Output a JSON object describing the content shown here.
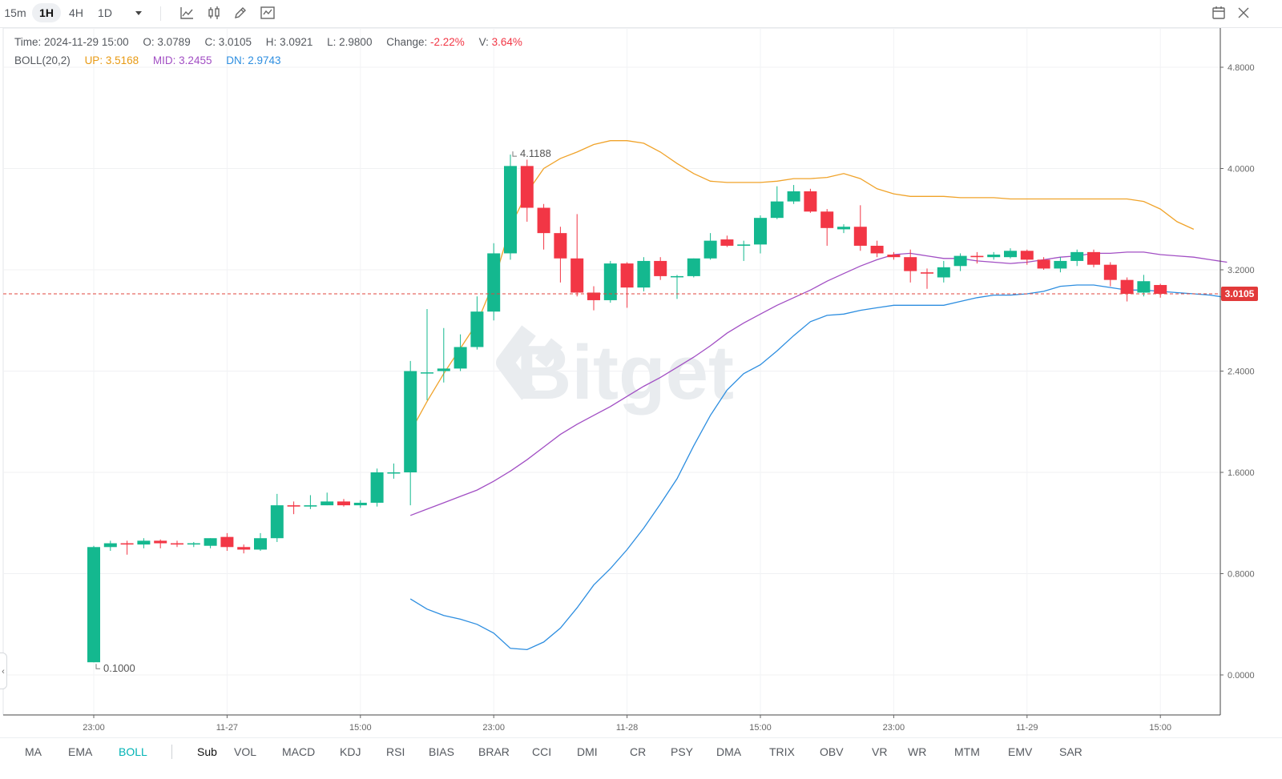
{
  "toolbar": {
    "timeframes": [
      "15m",
      "1H",
      "4H",
      "1D"
    ],
    "active_timeframe": "1H",
    "dropdown_icon": "triangle-down-icon",
    "tools": [
      "line-chart-icon",
      "candlestick-icon",
      "pencil-icon",
      "indicator-icon"
    ],
    "right_tools": [
      "calendar-icon",
      "fullscreen-exit-icon"
    ]
  },
  "legend": {
    "time_label": "Time:",
    "time_value": "2024-11-29 15:00",
    "open_label": "O:",
    "open_value": "3.0789",
    "close_label": "C:",
    "close_value": "3.0105",
    "high_label": "H:",
    "high_value": "3.0921",
    "low_label": "L:",
    "low_value": "2.9800",
    "change_label": "Change:",
    "change_value": "-2.22%",
    "vol_label": "V:",
    "vol_value": "3.64%",
    "boll_label": "BOLL(20,2)",
    "up_label": "UP:",
    "up_value": "3.5168",
    "mid_label": "MID:",
    "mid_value": "3.2455",
    "dn_label": "DN:",
    "dn_value": "2.9743"
  },
  "watermark": "Bitget",
  "current_price_tag": "3.0105",
  "colors": {
    "up": "#14b88f",
    "down": "#f23645",
    "boll_up": "#f0a32a",
    "boll_mid": "#a24fc4",
    "boll_dn": "#2d8ee0",
    "active": "#00b3b5",
    "price_line": "#e0453c"
  },
  "chart_data": {
    "type": "candlestick",
    "y_axis": {
      "min": 0,
      "max": 4.8,
      "ticks": [
        "4.8000",
        "4.0000",
        "3.2000",
        "2.4000",
        "1.6000",
        "0.8000",
        "0.0000"
      ]
    },
    "x_axis": {
      "ticks": [
        "23:00",
        "11-27",
        "15:00",
        "23:00",
        "11-28",
        "15:00",
        "23:00",
        "11-29",
        "15:00"
      ]
    },
    "annotations": {
      "max_label": "4.1188",
      "min_label": "0.1000"
    },
    "candles": [
      {
        "o": 0.1,
        "h": 1.02,
        "l": 0.1,
        "c": 1.01
      },
      {
        "o": 1.01,
        "h": 1.06,
        "l": 0.98,
        "c": 1.04
      },
      {
        "o": 1.04,
        "h": 1.06,
        "l": 0.95,
        "c": 1.03
      },
      {
        "o": 1.03,
        "h": 1.08,
        "l": 1.0,
        "c": 1.06
      },
      {
        "o": 1.06,
        "h": 1.07,
        "l": 1.0,
        "c": 1.04
      },
      {
        "o": 1.04,
        "h": 1.06,
        "l": 1.01,
        "c": 1.03
      },
      {
        "o": 1.03,
        "h": 1.05,
        "l": 1.01,
        "c": 1.04
      },
      {
        "o": 1.02,
        "h": 1.08,
        "l": 1.0,
        "c": 1.08
      },
      {
        "o": 1.09,
        "h": 1.12,
        "l": 0.98,
        "c": 1.01
      },
      {
        "o": 1.01,
        "h": 1.03,
        "l": 0.96,
        "c": 0.99
      },
      {
        "o": 0.99,
        "h": 1.12,
        "l": 0.98,
        "c": 1.08
      },
      {
        "o": 1.08,
        "h": 1.43,
        "l": 1.05,
        "c": 1.34
      },
      {
        "o": 1.34,
        "h": 1.37,
        "l": 1.27,
        "c": 1.33
      },
      {
        "o": 1.33,
        "h": 1.42,
        "l": 1.31,
        "c": 1.34
      },
      {
        "o": 1.34,
        "h": 1.44,
        "l": 1.34,
        "c": 1.37
      },
      {
        "o": 1.37,
        "h": 1.39,
        "l": 1.33,
        "c": 1.34
      },
      {
        "o": 1.34,
        "h": 1.38,
        "l": 1.32,
        "c": 1.36
      },
      {
        "o": 1.36,
        "h": 1.63,
        "l": 1.33,
        "c": 1.6
      },
      {
        "o": 1.6,
        "h": 1.67,
        "l": 1.55,
        "c": 1.6
      },
      {
        "o": 1.6,
        "h": 2.48,
        "l": 1.34,
        "c": 2.4
      },
      {
        "o": 2.39,
        "h": 2.89,
        "l": 2.17,
        "c": 2.39
      },
      {
        "o": 2.4,
        "h": 2.74,
        "l": 2.31,
        "c": 2.42
      },
      {
        "o": 2.42,
        "h": 2.69,
        "l": 2.4,
        "c": 2.59
      },
      {
        "o": 2.59,
        "h": 2.99,
        "l": 2.57,
        "c": 2.87
      },
      {
        "o": 2.87,
        "h": 3.41,
        "l": 2.8,
        "c": 3.33
      },
      {
        "o": 3.33,
        "h": 4.11,
        "l": 3.28,
        "c": 4.02
      },
      {
        "o": 4.02,
        "h": 4.07,
        "l": 3.58,
        "c": 3.69
      },
      {
        "o": 3.69,
        "h": 3.72,
        "l": 3.36,
        "c": 3.49
      },
      {
        "o": 3.49,
        "h": 3.54,
        "l": 3.1,
        "c": 3.29
      },
      {
        "o": 3.29,
        "h": 3.64,
        "l": 2.99,
        "c": 3.02
      },
      {
        "o": 3.02,
        "h": 3.07,
        "l": 2.88,
        "c": 2.96
      },
      {
        "o": 2.96,
        "h": 3.27,
        "l": 2.94,
        "c": 3.25
      },
      {
        "o": 3.25,
        "h": 3.26,
        "l": 2.9,
        "c": 3.06
      },
      {
        "o": 3.06,
        "h": 3.3,
        "l": 3.03,
        "c": 3.27
      },
      {
        "o": 3.27,
        "h": 3.3,
        "l": 3.12,
        "c": 3.15
      },
      {
        "o": 3.15,
        "h": 3.16,
        "l": 2.97,
        "c": 3.15
      },
      {
        "o": 3.15,
        "h": 3.29,
        "l": 3.14,
        "c": 3.29
      },
      {
        "o": 3.29,
        "h": 3.49,
        "l": 3.28,
        "c": 3.43
      },
      {
        "o": 3.44,
        "h": 3.47,
        "l": 3.38,
        "c": 3.39
      },
      {
        "o": 3.39,
        "h": 3.43,
        "l": 3.27,
        "c": 3.4
      },
      {
        "o": 3.4,
        "h": 3.63,
        "l": 3.33,
        "c": 3.61
      },
      {
        "o": 3.61,
        "h": 3.86,
        "l": 3.6,
        "c": 3.74
      },
      {
        "o": 3.74,
        "h": 3.87,
        "l": 3.72,
        "c": 3.82
      },
      {
        "o": 3.82,
        "h": 3.84,
        "l": 3.65,
        "c": 3.66
      },
      {
        "o": 3.66,
        "h": 3.68,
        "l": 3.39,
        "c": 3.53
      },
      {
        "o": 3.52,
        "h": 3.56,
        "l": 3.49,
        "c": 3.54
      },
      {
        "o": 3.54,
        "h": 3.71,
        "l": 3.35,
        "c": 3.39
      },
      {
        "o": 3.39,
        "h": 3.43,
        "l": 3.3,
        "c": 3.33
      },
      {
        "o": 3.32,
        "h": 3.34,
        "l": 3.28,
        "c": 3.3
      },
      {
        "o": 3.3,
        "h": 3.36,
        "l": 3.1,
        "c": 3.19
      },
      {
        "o": 3.18,
        "h": 3.21,
        "l": 3.05,
        "c": 3.17
      },
      {
        "o": 3.14,
        "h": 3.27,
        "l": 3.1,
        "c": 3.22
      },
      {
        "o": 3.23,
        "h": 3.33,
        "l": 3.19,
        "c": 3.31
      },
      {
        "o": 3.31,
        "h": 3.34,
        "l": 3.25,
        "c": 3.3
      },
      {
        "o": 3.3,
        "h": 3.34,
        "l": 3.28,
        "c": 3.32
      },
      {
        "o": 3.3,
        "h": 3.37,
        "l": 3.29,
        "c": 3.35
      },
      {
        "o": 3.35,
        "h": 3.36,
        "l": 3.24,
        "c": 3.28
      },
      {
        "o": 3.28,
        "h": 3.3,
        "l": 3.2,
        "c": 3.21
      },
      {
        "o": 3.21,
        "h": 3.3,
        "l": 3.18,
        "c": 3.27
      },
      {
        "o": 3.27,
        "h": 3.36,
        "l": 3.23,
        "c": 3.34
      },
      {
        "o": 3.34,
        "h": 3.36,
        "l": 3.22,
        "c": 3.24
      },
      {
        "o": 3.24,
        "h": 3.26,
        "l": 3.07,
        "c": 3.12
      },
      {
        "o": 3.12,
        "h": 3.14,
        "l": 2.95,
        "c": 3.01
      },
      {
        "o": 3.02,
        "h": 3.16,
        "l": 2.99,
        "c": 3.11
      },
      {
        "o": 3.08,
        "h": 3.09,
        "l": 2.98,
        "c": 3.01
      }
    ],
    "boll": {
      "start_index": 19,
      "up": [
        1.92,
        2.16,
        2.38,
        2.58,
        2.78,
        3.1,
        3.54,
        3.81,
        4.0,
        4.08,
        4.13,
        4.19,
        4.22,
        4.22,
        4.2,
        4.13,
        4.04,
        3.96,
        3.9,
        3.89,
        3.89,
        3.89,
        3.9,
        3.92,
        3.92,
        3.93,
        3.96,
        3.92,
        3.84,
        3.8,
        3.78,
        3.78,
        3.78,
        3.77,
        3.77,
        3.77,
        3.76,
        3.76,
        3.76,
        3.76,
        3.76,
        3.76,
        3.76,
        3.76,
        3.74,
        3.68,
        3.58,
        3.52
      ],
      "mid": [
        1.26,
        1.31,
        1.36,
        1.41,
        1.46,
        1.53,
        1.61,
        1.7,
        1.8,
        1.9,
        1.98,
        2.05,
        2.12,
        2.2,
        2.28,
        2.35,
        2.43,
        2.51,
        2.6,
        2.7,
        2.78,
        2.85,
        2.92,
        2.98,
        3.04,
        3.11,
        3.17,
        3.23,
        3.28,
        3.32,
        3.33,
        3.31,
        3.29,
        3.29,
        3.27,
        3.26,
        3.25,
        3.26,
        3.28,
        3.3,
        3.31,
        3.33,
        3.33,
        3.34,
        3.34,
        3.32,
        3.31,
        3.3,
        3.28,
        3.26
      ],
      "dn": [
        0.6,
        0.52,
        0.47,
        0.44,
        0.4,
        0.33,
        0.21,
        0.2,
        0.26,
        0.37,
        0.53,
        0.71,
        0.84,
        0.99,
        1.16,
        1.35,
        1.55,
        1.81,
        2.05,
        2.25,
        2.38,
        2.45,
        2.56,
        2.68,
        2.79,
        2.84,
        2.85,
        2.88,
        2.9,
        2.92,
        2.92,
        2.92,
        2.92,
        2.95,
        2.98,
        3.0,
        3.0,
        3.01,
        3.03,
        3.07,
        3.08,
        3.08,
        3.06,
        3.04,
        3.04,
        3.03,
        3.02,
        3.01,
        3.0,
        2.98
      ]
    }
  },
  "indicators": {
    "main": [
      "MA",
      "EMA",
      "BOLL"
    ],
    "active_main": "BOLL",
    "sub_label": "Sub",
    "sub": [
      "VOL",
      "MACD",
      "KDJ",
      "RSI",
      "BIAS",
      "BRAR",
      "CCI",
      "DMI",
      "CR",
      "PSY",
      "DMA",
      "TRIX",
      "OBV",
      "VR",
      "WR",
      "MTM",
      "EMV",
      "SAR"
    ]
  }
}
